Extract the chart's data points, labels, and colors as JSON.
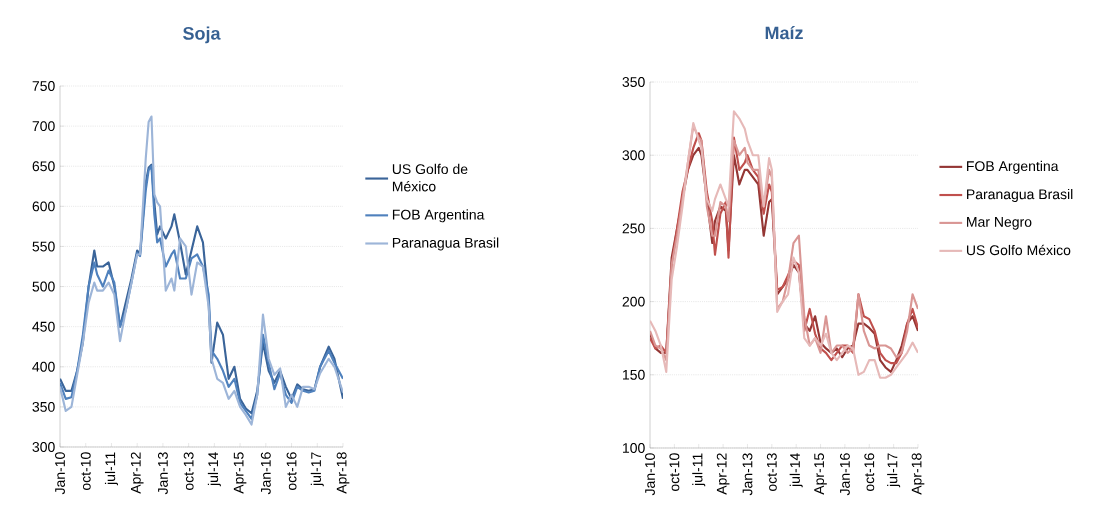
{
  "chart_data": [
    {
      "type": "line",
      "title": "Soja",
      "x": [
        "2010-01",
        "2010-03",
        "2010-05",
        "2010-07",
        "2010-09",
        "2010-11",
        "2011-01",
        "2011-02",
        "2011-04",
        "2011-06",
        "2011-08",
        "2011-10",
        "2011-12",
        "2012-02",
        "2012-04",
        "2012-05",
        "2012-07",
        "2012-08",
        "2012-09",
        "2012-10",
        "2012-11",
        "2012-12",
        "2013-02",
        "2013-04",
        "2013-05",
        "2013-07",
        "2013-09",
        "2013-11",
        "2014-01",
        "2014-03",
        "2014-05",
        "2014-06",
        "2014-08",
        "2014-10",
        "2014-12",
        "2015-02",
        "2015-04",
        "2015-06",
        "2015-08",
        "2015-10",
        "2015-12",
        "2016-02",
        "2016-04",
        "2016-06",
        "2016-08",
        "2016-10",
        "2016-12",
        "2017-02",
        "2017-04",
        "2017-06",
        "2017-08",
        "2017-11",
        "2018-01",
        "2018-04"
      ],
      "series": [
        {
          "name": "US Golfo de México",
          "color": "#3a6499",
          "values": [
            385,
            370,
            370,
            395,
            430,
            500,
            545,
            525,
            525,
            530,
            500,
            450,
            480,
            510,
            545,
            540,
            630,
            648,
            652,
            605,
            565,
            575,
            560,
            575,
            590,
            555,
            515,
            545,
            575,
            555,
            480,
            405,
            455,
            440,
            385,
            400,
            360,
            348,
            342,
            370,
            430,
            395,
            380,
            395,
            375,
            360,
            378,
            372,
            370,
            372,
            400,
            425,
            410,
            360
          ]
        },
        {
          "name": "FOB Argentina",
          "color": "#4f81bd",
          "values": [
            380,
            360,
            362,
            395,
            440,
            500,
            530,
            515,
            500,
            520,
            505,
            450,
            470,
            505,
            542,
            538,
            620,
            645,
            650,
            590,
            555,
            560,
            525,
            540,
            545,
            510,
            510,
            535,
            540,
            525,
            490,
            420,
            410,
            395,
            375,
            385,
            355,
            345,
            335,
            365,
            440,
            405,
            372,
            392,
            365,
            355,
            375,
            370,
            368,
            370,
            400,
            420,
            405,
            385
          ]
        },
        {
          "name": "Paranagua Brasil",
          "color": "#9db5d8",
          "values": [
            375,
            345,
            350,
            390,
            430,
            480,
            505,
            495,
            495,
            505,
            490,
            432,
            470,
            505,
            540,
            540,
            660,
            705,
            712,
            615,
            605,
            600,
            495,
            510,
            495,
            560,
            550,
            490,
            530,
            525,
            475,
            410,
            385,
            380,
            360,
            370,
            350,
            340,
            328,
            365,
            465,
            410,
            390,
            398,
            350,
            365,
            350,
            375,
            375,
            372,
            392,
            410,
            400,
            368
          ]
        }
      ],
      "xlim": [
        "2010-01",
        "2018-04"
      ],
      "xticks": [
        {
          "value": "2010-01",
          "label": "Jan-10"
        },
        {
          "value": "2010-10",
          "label": "oct-10"
        },
        {
          "value": "2011-07",
          "label": "jul-11"
        },
        {
          "value": "2012-04",
          "label": "Apr-12"
        },
        {
          "value": "2013-01",
          "label": "Jan-13"
        },
        {
          "value": "2013-10",
          "label": "oct-13"
        },
        {
          "value": "2014-07",
          "label": "jul-14"
        },
        {
          "value": "2015-04",
          "label": "Apr-15"
        },
        {
          "value": "2016-01",
          "label": "Jan-16"
        },
        {
          "value": "2016-10",
          "label": "oct-16"
        },
        {
          "value": "2017-07",
          "label": "jul-17"
        },
        {
          "value": "2018-04",
          "label": "Apr-18"
        }
      ],
      "ylim": [
        300,
        750
      ],
      "yticks": [
        300,
        350,
        400,
        450,
        500,
        550,
        600,
        650,
        700,
        750
      ],
      "grid": "y",
      "legend": "right"
    },
    {
      "type": "line",
      "title": "Maíz",
      "x": [
        "2010-01",
        "2010-03",
        "2010-05",
        "2010-07",
        "2010-09",
        "2010-11",
        "2011-01",
        "2011-03",
        "2011-05",
        "2011-07",
        "2011-08",
        "2011-10",
        "2011-12",
        "2012-01",
        "2012-03",
        "2012-05",
        "2012-06",
        "2012-08",
        "2012-10",
        "2012-12",
        "2013-01",
        "2013-03",
        "2013-05",
        "2013-07",
        "2013-09",
        "2013-10",
        "2013-12",
        "2014-02",
        "2014-04",
        "2014-06",
        "2014-08",
        "2014-10",
        "2014-12",
        "2015-02",
        "2015-04",
        "2015-06",
        "2015-08",
        "2015-10",
        "2015-12",
        "2016-02",
        "2016-04",
        "2016-06",
        "2016-08",
        "2016-10",
        "2016-12",
        "2017-02",
        "2017-04",
        "2017-06",
        "2017-08",
        "2017-10",
        "2017-12",
        "2018-02",
        "2018-04"
      ],
      "series": [
        {
          "name": "FOB Argentina",
          "color": "#943634",
          "values": [
            178,
            168,
            165,
            165,
            230,
            250,
            270,
            290,
            300,
            305,
            300,
            270,
            240,
            255,
            265,
            262,
            235,
            300,
            280,
            290,
            290,
            285,
            280,
            245,
            268,
            270,
            205,
            210,
            215,
            225,
            220,
            185,
            180,
            190,
            172,
            168,
            165,
            168,
            162,
            168,
            170,
            185,
            185,
            182,
            178,
            160,
            155,
            152,
            160,
            170,
            185,
            190,
            180
          ]
        },
        {
          "name": "Paranagua Brasil",
          "color": "#c0504d",
          "values": [
            175,
            168,
            170,
            165,
            225,
            250,
            275,
            290,
            305,
            315,
            310,
            275,
            255,
            232,
            260,
            268,
            230,
            312,
            290,
            295,
            300,
            290,
            285,
            260,
            280,
            275,
            208,
            210,
            218,
            228,
            225,
            180,
            195,
            178,
            168,
            165,
            160,
            165,
            170,
            170,
            165,
            205,
            190,
            188,
            180,
            165,
            160,
            158,
            158,
            165,
            185,
            195,
            182
          ]
        },
        {
          "name": "Mar Negro",
          "color": "#d99694",
          "values": [
            180,
            170,
            168,
            160,
            225,
            245,
            270,
            295,
            320,
            312,
            310,
            265,
            245,
            245,
            268,
            265,
            255,
            310,
            300,
            305,
            295,
            290,
            290,
            265,
            290,
            285,
            195,
            200,
            215,
            240,
            245,
            190,
            170,
            175,
            165,
            190,
            165,
            170,
            170,
            165,
            168,
            205,
            180,
            170,
            168,
            170,
            170,
            168,
            162,
            165,
            180,
            205,
            195
          ]
        },
        {
          "name": "US Golfo México",
          "color": "#e6b9b8",
          "values": [
            187,
            180,
            170,
            152,
            215,
            238,
            265,
            295,
            322,
            310,
            305,
            270,
            262,
            270,
            280,
            270,
            265,
            330,
            325,
            318,
            310,
            300,
            300,
            265,
            298,
            290,
            193,
            200,
            205,
            230,
            220,
            175,
            170,
            175,
            170,
            178,
            165,
            160,
            165,
            170,
            168,
            150,
            152,
            160,
            160,
            148,
            148,
            150,
            155,
            160,
            165,
            172,
            165
          ]
        }
      ],
      "xlim": [
        "2010-01",
        "2018-04"
      ],
      "xticks": [
        {
          "value": "2010-01",
          "label": "Jan-10"
        },
        {
          "value": "2010-10",
          "label": "oct-10"
        },
        {
          "value": "2011-07",
          "label": "jul-11"
        },
        {
          "value": "2012-04",
          "label": "Apr-12"
        },
        {
          "value": "2013-01",
          "label": "Jan-13"
        },
        {
          "value": "2013-10",
          "label": "oct-13"
        },
        {
          "value": "2014-07",
          "label": "jul-14"
        },
        {
          "value": "2015-04",
          "label": "Apr-15"
        },
        {
          "value": "2016-01",
          "label": "Jan-16"
        },
        {
          "value": "2016-10",
          "label": "oct-16"
        },
        {
          "value": "2017-07",
          "label": "jul-17"
        },
        {
          "value": "2018-04",
          "label": "Apr-18"
        }
      ],
      "ylim": [
        100,
        350
      ],
      "yticks": [
        100,
        150,
        200,
        250,
        300,
        350
      ],
      "grid": "y",
      "legend": "right"
    }
  ]
}
